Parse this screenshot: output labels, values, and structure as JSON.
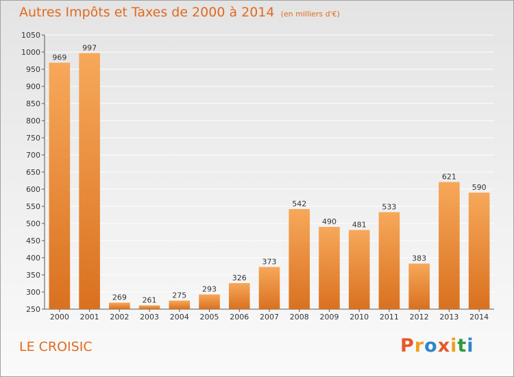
{
  "header": {
    "title": "Autres Impôts et Taxes de 2000 à 2014",
    "unit": "(en milliers d'€)"
  },
  "footer": {
    "commune": "LE CROISIC",
    "logo": "Proxiti"
  },
  "colors": {
    "title": "#e06a1e",
    "bar_top": "#f7a85a",
    "bar_bottom": "#d9711f",
    "logo_letters": [
      "#e8572a",
      "#f0a020",
      "#2e86c8",
      "#e8572a",
      "#f0a020",
      "#2e9b3a",
      "#2e86c8"
    ]
  },
  "chart_data": {
    "type": "bar",
    "title": "Autres Impôts et Taxes de 2000 à 2014",
    "subtitle": "(en milliers d'€)",
    "xlabel": "",
    "ylabel": "",
    "categories": [
      "2000",
      "2001",
      "2002",
      "2003",
      "2004",
      "2005",
      "2006",
      "2007",
      "2008",
      "2009",
      "2010",
      "2011",
      "2012",
      "2013",
      "2014"
    ],
    "values": [
      969,
      997,
      269,
      261,
      275,
      293,
      326,
      373,
      542,
      490,
      481,
      533,
      383,
      621,
      590
    ],
    "ylim": [
      250,
      1050
    ],
    "yticks": [
      250,
      300,
      350,
      400,
      450,
      500,
      550,
      600,
      650,
      700,
      750,
      800,
      850,
      900,
      950,
      1000,
      1050
    ],
    "grid": "horizontal",
    "legend": "none",
    "data_labels": true
  }
}
